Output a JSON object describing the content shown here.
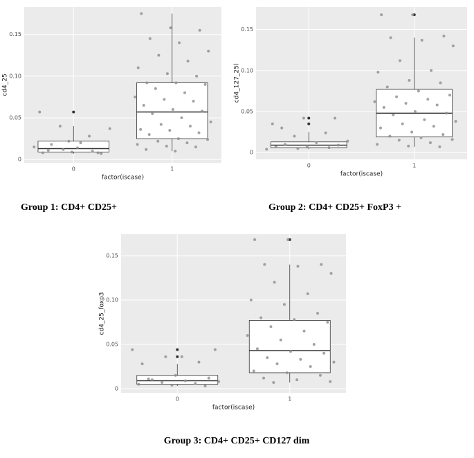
{
  "chart_data": [
    {
      "type": "box",
      "caption": "Group 1: CD4+ CD25+",
      "y_label": "cd4_25",
      "x_label": "factor(iscase)",
      "categories": [
        "0",
        "1"
      ],
      "grid": true,
      "panel_color": "#ebebeb",
      "point_color": "#8c8c8c",
      "outlier_color": "#333333",
      "ylim": [
        -0.004,
        0.183
      ],
      "yticks": [
        0,
        0.05,
        {
          "value": 0.1,
          "label": "0.10"
        },
        0.15
      ],
      "boxes": [
        {
          "low": 0.007,
          "q1": 0.009,
          "median": 0.013,
          "q3": 0.022,
          "high": 0.04,
          "outliers": [
            0.057
          ]
        },
        {
          "low": 0.01,
          "q1": 0.025,
          "median": 0.057,
          "q3": 0.092,
          "high": 0.175,
          "outliers": []
        }
      ],
      "points": [
        [
          0.015,
          0.012,
          0.01,
          0.008,
          0.009,
          0.007,
          0.018,
          0.02,
          0.037,
          0.04,
          0.028,
          0.057,
          0.022,
          0.008,
          0.011,
          0.014
        ],
        [
          0.175,
          0.158,
          0.155,
          0.145,
          0.14,
          0.13,
          0.125,
          0.118,
          0.11,
          0.103,
          0.1,
          0.092,
          0.092,
          0.09,
          0.085,
          0.08,
          0.075,
          0.072,
          0.07,
          0.065,
          0.06,
          0.058,
          0.055,
          0.05,
          0.045,
          0.042,
          0.04,
          0.036,
          0.035,
          0.032,
          0.03,
          0.025,
          0.024,
          0.022,
          0.02,
          0.018,
          0.016,
          0.015,
          0.012,
          0.01
        ]
      ]
    },
    {
      "type": "box",
      "caption": "Group 2: CD4+ CD25+ FoxP3 +",
      "y_label": "cd4_127_25l",
      "x_label": "factor(iscase)",
      "categories": [
        "0",
        "1"
      ],
      "grid": true,
      "panel_color": "#ebebeb",
      "point_color": "#8c8c8c",
      "outlier_color": "#333333",
      "ylim": [
        -0.0083,
        0.1775
      ],
      "yticks": [
        0,
        0.05,
        {
          "value": 0.1,
          "label": "0.10"
        },
        0.15
      ],
      "boxes": [
        {
          "low": 0.004,
          "q1": 0.006,
          "median": 0.009,
          "q3": 0.013,
          "high": 0.025,
          "outliers": [
            0.035,
            0.042
          ]
        },
        {
          "low": 0.007,
          "q1": 0.019,
          "median": 0.048,
          "q3": 0.077,
          "high": 0.14,
          "outliers": [
            0.168
          ]
        }
      ],
      "points": [
        [
          0.004,
          0.005,
          0.006,
          0.007,
          0.008,
          0.009,
          0.01,
          0.012,
          0.014,
          0.02,
          0.024,
          0.035,
          0.042,
          0.042,
          0.03
        ],
        [
          0.168,
          0.168,
          0.142,
          0.14,
          0.137,
          0.13,
          0.112,
          0.1,
          0.098,
          0.088,
          0.085,
          0.08,
          0.075,
          0.07,
          0.068,
          0.065,
          0.062,
          0.06,
          0.058,
          0.055,
          0.05,
          0.048,
          0.046,
          0.04,
          0.038,
          0.035,
          0.032,
          0.03,
          0.025,
          0.022,
          0.02,
          0.018,
          0.016,
          0.015,
          0.012,
          0.01,
          0.008,
          0.007
        ]
      ]
    },
    {
      "type": "box",
      "caption": "Group 3: CD4+ CD25+ CD127 dim",
      "y_label": "cd4_25_foxp3",
      "x_label": "factor(iscase)",
      "categories": [
        "0",
        "1"
      ],
      "grid": true,
      "panel_color": "#ebebeb",
      "point_color": "#8c8c8c",
      "outlier_color": "#333333",
      "ylim": [
        -0.0047,
        0.1742
      ],
      "yticks": [
        0,
        0.05,
        {
          "value": 0.1,
          "label": "0.10"
        },
        0.15
      ],
      "boxes": [
        {
          "low": 0.003,
          "q1": 0.005,
          "median": 0.009,
          "q3": 0.015,
          "high": 0.028,
          "outliers": [
            0.036,
            0.044
          ]
        },
        {
          "low": 0.007,
          "q1": 0.018,
          "median": 0.043,
          "q3": 0.077,
          "high": 0.14,
          "outliers": [
            0.168
          ]
        }
      ],
      "points": [
        [
          0.044,
          0.036,
          0.03,
          0.028,
          0.015,
          0.012,
          0.01,
          0.009,
          0.008,
          0.007,
          0.006,
          0.005,
          0.004,
          0.003,
          0.011,
          0.036,
          0.044
        ],
        [
          0.168,
          0.168,
          0.14,
          0.14,
          0.138,
          0.13,
          0.12,
          0.107,
          0.1,
          0.095,
          0.085,
          0.08,
          0.078,
          0.075,
          0.07,
          0.065,
          0.06,
          0.055,
          0.05,
          0.045,
          0.042,
          0.04,
          0.035,
          0.033,
          0.03,
          0.028,
          0.025,
          0.02,
          0.018,
          0.015,
          0.012,
          0.01,
          0.008,
          0.007
        ]
      ]
    }
  ]
}
